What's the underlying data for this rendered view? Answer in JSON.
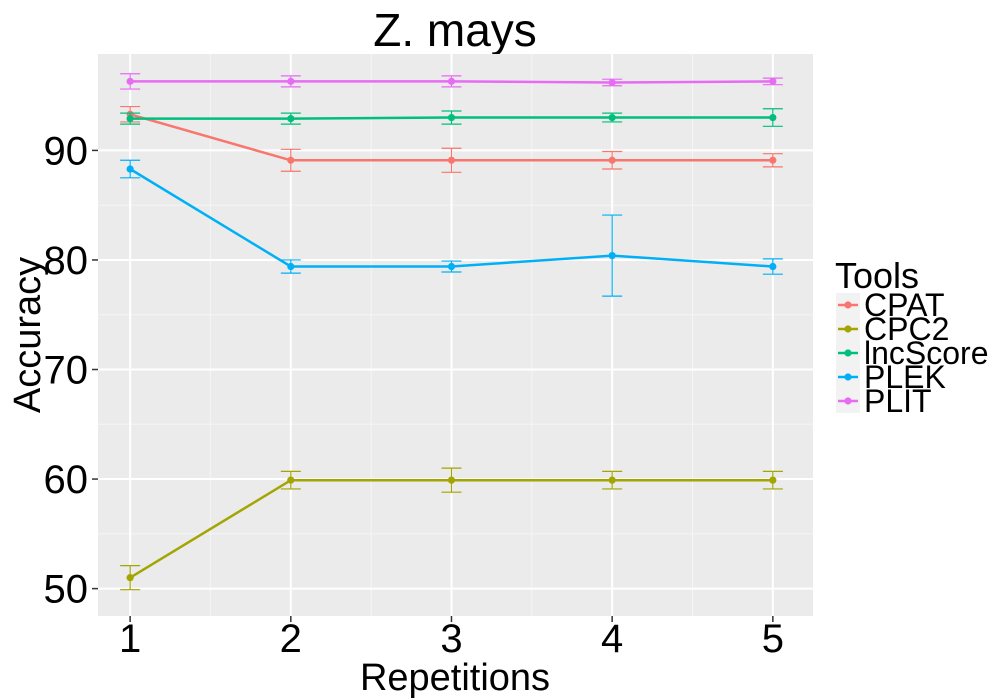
{
  "chart_data": {
    "type": "line",
    "title": "Z. mays",
    "xlabel": "Repetitions",
    "ylabel": "Accuracy",
    "x": [
      1,
      2,
      3,
      4,
      5
    ],
    "xlim": [
      0.8,
      5.25
    ],
    "ylim": [
      47.5,
      98.8
    ],
    "yticks": [
      50,
      60,
      70,
      80,
      90
    ],
    "grid": true,
    "legend_position": "right",
    "legend_title": "Tools",
    "series": [
      {
        "name": "CPAT",
        "color": "#F8766D",
        "values": [
          93.3,
          89.1,
          89.1,
          89.1,
          89.1
        ],
        "error": [
          0.7,
          1.0,
          1.1,
          0.8,
          0.6
        ]
      },
      {
        "name": "CPC2",
        "color": "#A3A500",
        "values": [
          51.0,
          59.9,
          59.9,
          59.9,
          59.9
        ],
        "error": [
          1.1,
          0.8,
          1.1,
          0.8,
          0.8
        ]
      },
      {
        "name": "lncScore",
        "color": "#00BF7D",
        "values": [
          92.9,
          92.9,
          93.0,
          93.0,
          93.0
        ],
        "error": [
          0.5,
          0.5,
          0.6,
          0.4,
          0.8
        ]
      },
      {
        "name": "PLEK",
        "color": "#00B0F6",
        "values": [
          88.3,
          79.4,
          79.4,
          80.4,
          79.4
        ],
        "error": [
          0.8,
          0.6,
          0.5,
          3.7,
          0.7
        ]
      },
      {
        "name": "PLIT",
        "color": "#E76BF3",
        "values": [
          96.3,
          96.3,
          96.3,
          96.2,
          96.3
        ],
        "error": [
          0.7,
          0.5,
          0.5,
          0.3,
          0.3
        ]
      }
    ]
  }
}
